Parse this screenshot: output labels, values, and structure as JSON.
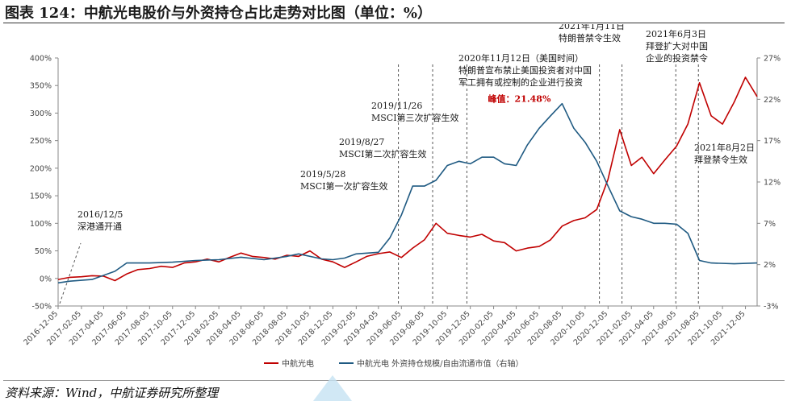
{
  "figure_title": "图表 124：中航光电股价与外资持仓占比走势对比图（单位：%）",
  "source": "资料来源：Wind，中航证券研究所整理",
  "chart_data": {
    "type": "line",
    "x_dates": [
      "2016-12-05",
      "2017-02-05",
      "2017-04-05",
      "2017-06-05",
      "2017-08-05",
      "2017-10-05",
      "2017-12-05",
      "2018-02-05",
      "2018-04-05",
      "2018-06-05",
      "2018-08-05",
      "2018-10-05",
      "2018-12-05",
      "2019-02-05",
      "2019-04-05",
      "2019-06-05",
      "2019-08-05",
      "2019-10-05",
      "2019-12-05",
      "2020-02-05",
      "2020-04-05",
      "2020-06-05",
      "2020-08-05",
      "2020-10-05",
      "2020-12-05",
      "2021-02-05",
      "2021-04-05",
      "2021-06-05",
      "2021-08-05",
      "2021-10-05",
      "2021-12-05"
    ],
    "left_axis": {
      "ticks": [
        "-50%",
        "0%",
        "50%",
        "100%",
        "150%",
        "200%",
        "250%",
        "300%",
        "350%",
        "400%"
      ],
      "min": -50,
      "max": 400
    },
    "right_axis": {
      "ticks": [
        "-3%",
        "2%",
        "7%",
        "12%",
        "17%",
        "22%",
        "27%"
      ],
      "min": -3,
      "max": 27
    },
    "series": [
      {
        "name": "中航光电",
        "axis": "left",
        "color": "#c00000",
        "points": [
          [
            "2016-12-05",
            -2
          ],
          [
            "2017-01-05",
            2
          ],
          [
            "2017-02-05",
            3
          ],
          [
            "2017-03-05",
            5
          ],
          [
            "2017-04-05",
            4
          ],
          [
            "2017-05-05",
            -4
          ],
          [
            "2017-06-05",
            8
          ],
          [
            "2017-07-05",
            16
          ],
          [
            "2017-08-05",
            18
          ],
          [
            "2017-09-05",
            22
          ],
          [
            "2017-10-05",
            20
          ],
          [
            "2017-11-05",
            28
          ],
          [
            "2017-12-05",
            30
          ],
          [
            "2018-01-05",
            35
          ],
          [
            "2018-02-05",
            30
          ],
          [
            "2018-03-05",
            38
          ],
          [
            "2018-04-05",
            46
          ],
          [
            "2018-05-05",
            40
          ],
          [
            "2018-06-05",
            38
          ],
          [
            "2018-07-05",
            35
          ],
          [
            "2018-08-05",
            42
          ],
          [
            "2018-09-05",
            40
          ],
          [
            "2018-10-05",
            50
          ],
          [
            "2018-11-05",
            35
          ],
          [
            "2018-12-05",
            30
          ],
          [
            "2019-01-05",
            20
          ],
          [
            "2019-02-05",
            30
          ],
          [
            "2019-03-05",
            40
          ],
          [
            "2019-04-05",
            45
          ],
          [
            "2019-05-05",
            48
          ],
          [
            "2019-06-05",
            38
          ],
          [
            "2019-07-05",
            55
          ],
          [
            "2019-08-05",
            70
          ],
          [
            "2019-09-05",
            100
          ],
          [
            "2019-10-05",
            82
          ],
          [
            "2019-11-05",
            78
          ],
          [
            "2019-12-05",
            75
          ],
          [
            "2020-01-05",
            80
          ],
          [
            "2020-02-05",
            68
          ],
          [
            "2020-03-05",
            65
          ],
          [
            "2020-04-05",
            50
          ],
          [
            "2020-05-05",
            55
          ],
          [
            "2020-06-05",
            58
          ],
          [
            "2020-07-05",
            70
          ],
          [
            "2020-08-05",
            95
          ],
          [
            "2020-09-05",
            105
          ],
          [
            "2020-10-05",
            110
          ],
          [
            "2020-11-05",
            125
          ],
          [
            "2020-12-05",
            180
          ],
          [
            "2021-01-05",
            270
          ],
          [
            "2021-02-05",
            205
          ],
          [
            "2021-03-05",
            220
          ],
          [
            "2021-04-05",
            190
          ],
          [
            "2021-05-05",
            215
          ],
          [
            "2021-06-05",
            240
          ],
          [
            "2021-07-05",
            280
          ],
          [
            "2021-08-05",
            355
          ],
          [
            "2021-09-05",
            295
          ],
          [
            "2021-10-05",
            280
          ],
          [
            "2021-11-05",
            320
          ],
          [
            "2021-12-05",
            365
          ],
          [
            "2022-01-05",
            330
          ]
        ]
      },
      {
        "name": "中航光电  外资持仓规模/自由流通市值（右轴）",
        "axis": "right",
        "color": "#1f5a82",
        "points": [
          [
            "2016-12-05",
            -0.2
          ],
          [
            "2017-01-05",
            0
          ],
          [
            "2017-03-05",
            0.2
          ],
          [
            "2017-05-05",
            1.2
          ],
          [
            "2017-06-05",
            2.2
          ],
          [
            "2017-08-05",
            2.2
          ],
          [
            "2017-10-05",
            2.3
          ],
          [
            "2017-12-05",
            2.5
          ],
          [
            "2018-02-05",
            2.6
          ],
          [
            "2018-04-05",
            2.9
          ],
          [
            "2018-06-05",
            2.6
          ],
          [
            "2018-08-05",
            3.0
          ],
          [
            "2018-09-05",
            3.3
          ],
          [
            "2018-11-05",
            2.7
          ],
          [
            "2018-12-05",
            2.6
          ],
          [
            "2019-01-05",
            2.8
          ],
          [
            "2019-02-05",
            3.3
          ],
          [
            "2019-04-05",
            3.5
          ],
          [
            "2019-05-05",
            5.2
          ],
          [
            "2019-06-05",
            8.0
          ],
          [
            "2019-07-05",
            11.5
          ],
          [
            "2019-08-05",
            11.5
          ],
          [
            "2019-09-05",
            12.2
          ],
          [
            "2019-10-05",
            14.0
          ],
          [
            "2019-11-05",
            14.5
          ],
          [
            "2019-12-05",
            14.2
          ],
          [
            "2020-01-05",
            15.0
          ],
          [
            "2020-02-05",
            15.0
          ],
          [
            "2020-03-05",
            14.2
          ],
          [
            "2020-04-05",
            14.0
          ],
          [
            "2020-05-05",
            16.5
          ],
          [
            "2020-06-05",
            18.5
          ],
          [
            "2020-07-05",
            20.0
          ],
          [
            "2020-08-05",
            21.48
          ],
          [
            "2020-09-05",
            18.5
          ],
          [
            "2020-10-05",
            16.8
          ],
          [
            "2020-11-05",
            14.5
          ],
          [
            "2020-12-05",
            11.5
          ],
          [
            "2021-01-05",
            8.5
          ],
          [
            "2021-02-05",
            7.8
          ],
          [
            "2021-03-05",
            7.5
          ],
          [
            "2021-04-05",
            7.0
          ],
          [
            "2021-05-05",
            7.0
          ],
          [
            "2021-06-05",
            6.9
          ],
          [
            "2021-07-05",
            5.8
          ],
          [
            "2021-08-05",
            2.5
          ],
          [
            "2021-09-05",
            2.2
          ],
          [
            "2021-11-05",
            2.1
          ],
          [
            "2022-01-05",
            2.2
          ]
        ]
      }
    ],
    "events": [
      {
        "date": "2016-12-05",
        "lines": [
          "2016/12/5",
          "深港通开通"
        ]
      },
      {
        "date": "2019-05-28",
        "lines": [
          "2019/5/28",
          "MSCI第一次扩容生效"
        ]
      },
      {
        "date": "2019-08-27",
        "lines": [
          "2019/8/27",
          "MSCI第二次扩容生效"
        ]
      },
      {
        "date": "2019-11-26",
        "lines": [
          "2019/11/26",
          "MSCI第三次扩容生效"
        ]
      },
      {
        "date": "2020-11-12",
        "lines": [
          "2020年11月12日（美国时间）",
          "特朗普宣布禁止美国投资者对中国",
          "军工拥有或控制的企业进行投资"
        ]
      },
      {
        "date": "2021-01-11",
        "lines": [
          "2021年1月11日",
          "特朗普禁令生效"
        ]
      },
      {
        "date": "2021-06-03",
        "lines": [
          "2021年6月3日",
          "拜登扩大对中国",
          "企业的投资禁令"
        ]
      },
      {
        "date": "2021-08-02",
        "lines": [
          "2021年8月2日",
          "拜登禁令生效"
        ]
      }
    ],
    "peak_label": {
      "text": "峰值：21.48%",
      "date": "2020-08-05",
      "value": 21.48,
      "color": "#c00000"
    },
    "legend_position": "bottom",
    "grid": false
  }
}
